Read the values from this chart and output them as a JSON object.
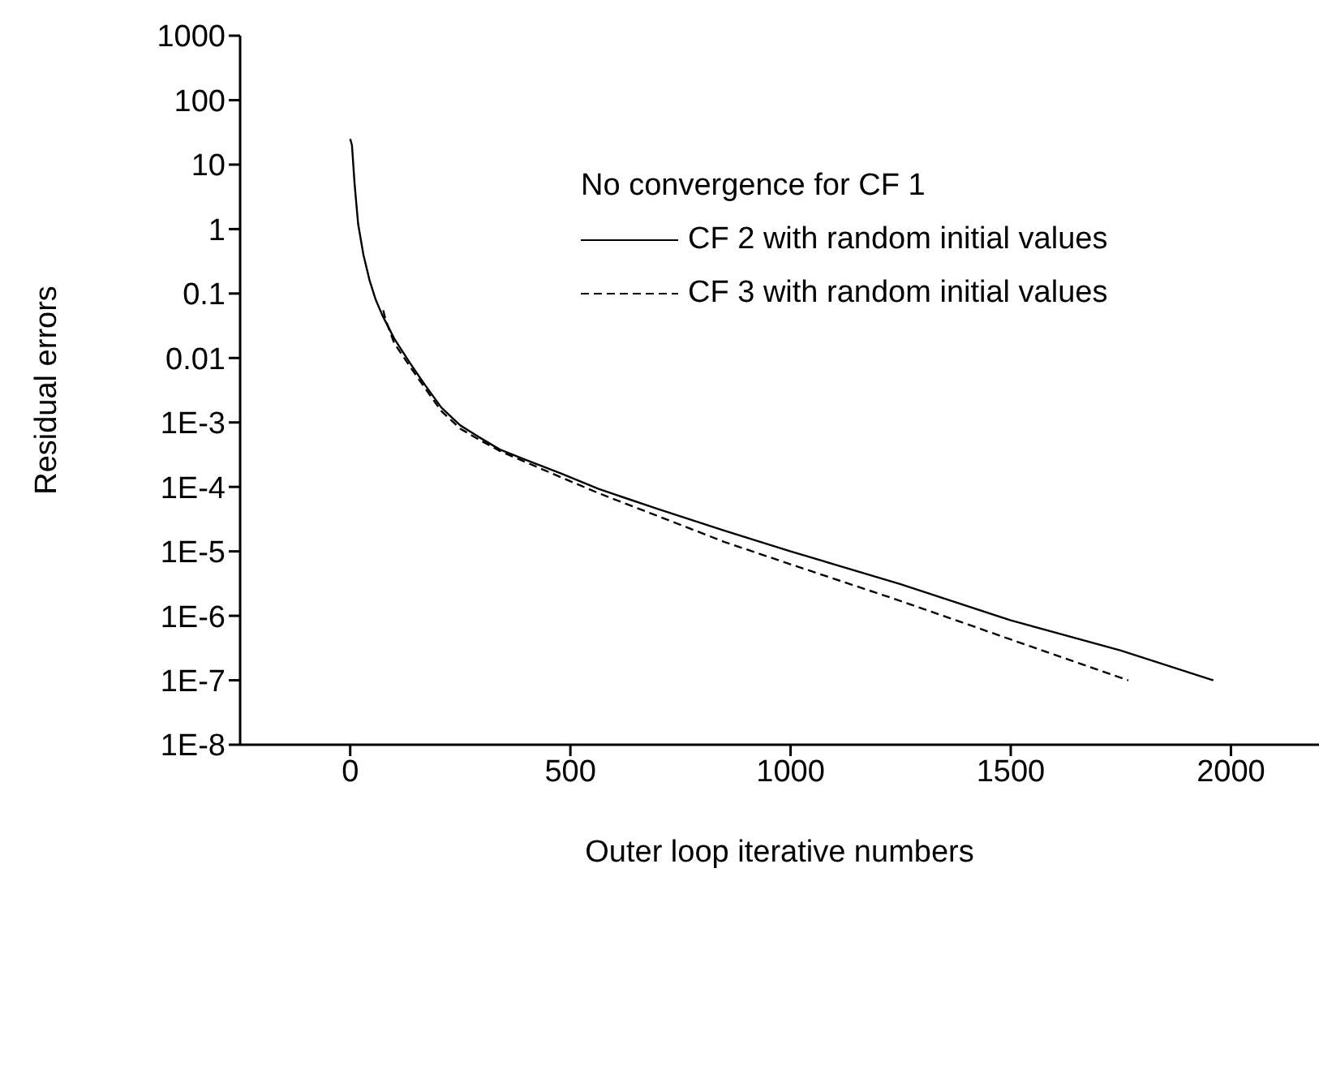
{
  "chart_data": {
    "type": "line",
    "xlabel": "Outer loop iterative numbers",
    "ylabel": "Residual errors",
    "legend_title": "No convergence for CF 1",
    "legend": "top right",
    "log": "y",
    "grid": false,
    "marker": "none",
    "xlim": [
      -250,
      2200
    ],
    "xticks": [
      0,
      500,
      1000,
      1500,
      2000
    ],
    "ylim": [
      1e-08,
      1000
    ],
    "yticks": [
      1000,
      100,
      10,
      1,
      0.1,
      0.01,
      {
        "value": 0.001,
        "label": "1E-3"
      },
      {
        "value": 0.0001,
        "label": "1E-4"
      },
      {
        "value": 1e-05,
        "label": "1E-5"
      },
      {
        "value": 1e-06,
        "label": "1E-6"
      },
      {
        "value": 1e-07,
        "label": "1E-7"
      },
      {
        "value": 1e-08,
        "label": "1E-8"
      }
    ],
    "series": [
      {
        "name": "CF 2 with random initial values",
        "color": "#000000",
        "line_style": "solid",
        "x": [
          0,
          4,
          10,
          18,
          30,
          44,
          58,
          73,
          100,
          135,
          170,
          207,
          250,
          291,
          340,
          400,
          480,
          564,
          700,
          850,
          1000,
          1250,
          1500,
          1750,
          1960
        ],
        "values": [
          25,
          20,
          5,
          1.2,
          0.4,
          0.16,
          0.08,
          0.046,
          0.02,
          0.0085,
          0.0038,
          0.0017,
          0.0009,
          0.0006,
          0.00038,
          0.00026,
          0.00016,
          9.3e-05,
          4.5e-05,
          2.1e-05,
          1e-05,
          3.1e-06,
          8.5e-07,
          2.9e-07,
          1e-07
        ]
      },
      {
        "name": "CF 3 with random initial values",
        "color": "#000000",
        "line_style": "dashed",
        "x": [
          75,
          80,
          100,
          135,
          170,
          207,
          250,
          291,
          340,
          400,
          480,
          564,
          700,
          850,
          1000,
          1250,
          1500,
          1767
        ],
        "values": [
          0.055,
          0.04,
          0.017,
          0.0075,
          0.0034,
          0.0015,
          0.0008,
          0.00055,
          0.00036,
          0.00024,
          0.00014,
          8e-05,
          3.5e-05,
          1.4e-05,
          6.3e-06,
          1.7e-06,
          4.3e-07,
          1e-07
        ]
      }
    ]
  }
}
